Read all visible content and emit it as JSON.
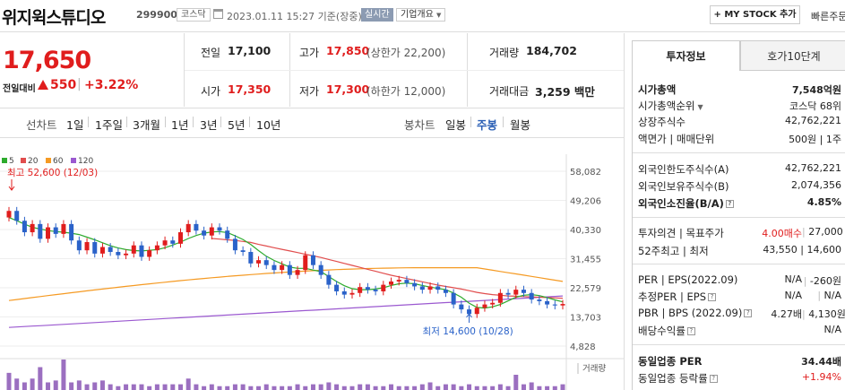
{
  "header": {
    "name": "위지윅스튜디오",
    "code": "299900",
    "market": "코스닥",
    "timestamp": "2023.01.11 15:27 기준(장중)",
    "live_label": "실시간",
    "overview_label": "기업개요",
    "mystock_label": "+ MY STOCK 추가",
    "quick_label": "빠른주문"
  },
  "price": {
    "current": "17,650",
    "change_label": "전일대비",
    "change": "550",
    "change_pct": "+3.22%",
    "separator": "|"
  },
  "quote": {
    "prev_label": "전일",
    "prev": "17,100",
    "high_label": "고가",
    "high": "17,850",
    "upper_limit": "(상한가 22,200)",
    "volume_label": "거래량",
    "volume": "184,702",
    "open_label": "시가",
    "open": "17,350",
    "low_label": "저가",
    "low": "17,300",
    "lower_limit": "(하한가 12,000)",
    "amount_label": "거래대금",
    "amount": "3,259 백만"
  },
  "periods": {
    "line_label": "선차트",
    "items": [
      "1일",
      "1주일",
      "3개월",
      "1년",
      "3년",
      "5년",
      "10년"
    ],
    "candle_label": "봉차트",
    "candles": [
      "일봉",
      "주봉",
      "월봉"
    ],
    "active_candle": "주봉"
  },
  "chart_data": {
    "type": "candlestick",
    "legend": [
      {
        "name": "5",
        "color": "#2dab2d"
      },
      {
        "name": "20",
        "color": "#e14d4d"
      },
      {
        "name": "60",
        "color": "#f59a23"
      },
      {
        "name": "120",
        "color": "#9b59d0"
      }
    ],
    "y_ticks": [
      "58,082",
      "49,206",
      "40,330",
      "31,455",
      "22,579",
      "13,703",
      "4,828"
    ],
    "max_annotation": "최고 52,600 (12/03)",
    "min_annotation": "최저 14,600 (10/28)",
    "volume_label": "거래량",
    "closes": [
      46000,
      43000,
      39500,
      42000,
      37500,
      41000,
      39000,
      42000,
      37000,
      34000,
      36500,
      33000,
      35000,
      33500,
      32500,
      33000,
      35500,
      32000,
      34000,
      35500,
      37000,
      36000,
      39500,
      42000,
      40000,
      38500,
      41000,
      40000,
      37500,
      34000,
      33500,
      30000,
      31000,
      29500,
      28000,
      29500,
      26500,
      28000,
      32500,
      29500,
      26500,
      23500,
      21500,
      20500,
      21000,
      22800,
      22000,
      21500,
      23500,
      24500,
      25000,
      24000,
      23000,
      22000,
      23000,
      22000,
      21000,
      17500,
      16000,
      14600,
      16500,
      17500,
      18000,
      21000,
      20500,
      22000,
      21000,
      19000,
      18500,
      17500,
      17200,
      17650
    ],
    "ma5": [
      44000,
      43000,
      42000,
      41000,
      40500,
      40000,
      39700,
      39500,
      39200,
      38800,
      38000,
      37200,
      36300,
      35400,
      34700,
      34200,
      33900,
      33800,
      34000,
      34200,
      34800,
      35600,
      36500,
      37600,
      38500,
      39200,
      39600,
      39700,
      39400,
      38400,
      37300,
      35800,
      33900,
      32200,
      30900,
      29900,
      28900,
      28500,
      28500,
      28000,
      27500,
      26000,
      24500,
      23200,
      22300,
      22000,
      22000,
      22200,
      22600,
      23300,
      23800,
      24000,
      23800,
      23300,
      22800,
      22400,
      22000,
      21000,
      19700,
      17900,
      16600,
      16400,
      16800,
      17500,
      18600,
      19700,
      20300,
      20500,
      20200,
      19600,
      18900,
      18300
    ],
    "ma20": [
      null,
      null,
      null,
      null,
      null,
      null,
      null,
      null,
      null,
      null,
      null,
      null,
      null,
      null,
      null,
      null,
      null,
      null,
      null,
      null,
      null,
      null,
      null,
      null,
      null,
      null,
      37600,
      37400,
      37200,
      37000,
      36700,
      36400,
      35800,
      35300,
      34800,
      34300,
      33800,
      33300,
      32800,
      32300,
      31800,
      31200,
      30600,
      30000,
      29400,
      28800,
      28200,
      27600,
      27000,
      26400,
      25900,
      25400,
      24900,
      24400,
      23900,
      23400,
      23000,
      22600,
      22200,
      21700,
      21200,
      20800,
      20500,
      20300,
      20100,
      20000,
      19900,
      19800,
      19700,
      19600,
      19500,
      19400
    ],
    "ma60": [
      null,
      null,
      null,
      null,
      null,
      null,
      null,
      null,
      null,
      null,
      null,
      null,
      null,
      null,
      null,
      null,
      null,
      null,
      null,
      null,
      null,
      null,
      null,
      null,
      null,
      null,
      null,
      null,
      null,
      null,
      null,
      null,
      null,
      null,
      null,
      null,
      null,
      null,
      null,
      null,
      null,
      null,
      null,
      null,
      null,
      null,
      null,
      null,
      null,
      null,
      null,
      null,
      null,
      null,
      null,
      null,
      null,
      null,
      null,
      null,
      null,
      null,
      null,
      null,
      null,
      null,
      null,
      null,
      null,
      null,
      null,
      null
    ],
    "volumes": [
      9,
      6,
      4,
      6,
      12,
      4,
      5,
      16,
      4,
      5,
      3,
      4,
      5,
      3,
      2,
      3,
      3,
      3,
      2,
      3,
      3,
      3,
      3,
      6,
      3,
      2,
      3,
      2,
      2,
      3,
      3,
      2,
      2,
      3,
      2,
      2,
      2,
      3,
      2,
      3,
      3,
      4,
      3,
      2,
      2,
      3,
      3,
      2,
      2,
      3,
      2,
      2,
      2,
      3,
      4,
      2,
      3,
      3,
      2,
      3,
      2,
      2,
      2,
      3,
      2,
      8,
      3,
      4,
      2,
      2,
      2,
      3
    ]
  },
  "invest": {
    "tab_active": "투자정보",
    "tab_other": "호가10단계",
    "rows1": [
      {
        "label": "시가총액",
        "value": "7,548억원",
        "bold": true
      },
      {
        "label": "시가총액순위",
        "value": "코스닥 68위"
      },
      {
        "label": "상장주식수",
        "value": "42,762,221"
      },
      {
        "label": "액면가 | 매매단위",
        "value": "500원 | 1주"
      }
    ],
    "rows2": [
      {
        "label": "외국인한도주식수(A)",
        "value": "42,762,221"
      },
      {
        "label": "외국인보유주식수(B)",
        "value": "2,074,356"
      },
      {
        "label": "외국인소진율(B/A)",
        "value": "4.85%",
        "bold": true
      }
    ],
    "opinion_label": "투자의견 | 목표주가",
    "opinion_value": "4.00매수",
    "target_value": "27,000",
    "week52_label": "52주최고 | 최저",
    "week52_value": "43,550 | 14,600",
    "per_label": "PER | EPS(2022.09)",
    "per_value": "N/A",
    "eps_value": "-260원",
    "est_label": "추정PER | EPS",
    "est_value": "N/A",
    "est_eps": "N/A",
    "pbr_label": "PBR | BPS (2022.09)",
    "pbr_value": "4.27배",
    "bps_value": "4,130원",
    "div_label": "배당수익률",
    "div_value": "N/A",
    "sector_per_label": "동일업종 PER",
    "sector_per_value": "34.44배",
    "sector_chg_label": "동일업종 등락률",
    "sector_chg_value": "+1.94%"
  }
}
